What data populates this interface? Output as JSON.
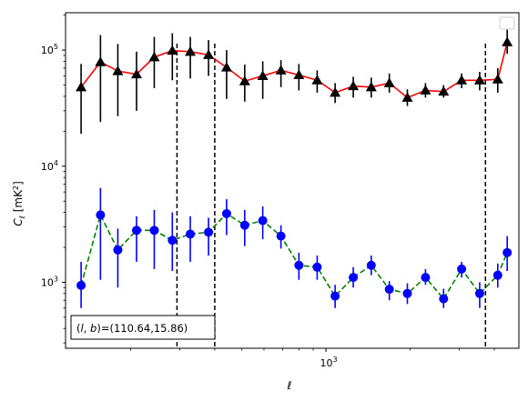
{
  "chart_data": {
    "type": "line",
    "xscale": "log",
    "yscale": "log",
    "xlabel": "ℓ",
    "ylabel": "C_ℓ [mK²]",
    "xlim": [
      117,
      4900
    ],
    "ylim": [
      270,
      210000
    ],
    "grid": false,
    "legend": "top-right",
    "x_ticks": [
      {
        "value": 1000,
        "base": "10",
        "exp": "3"
      }
    ],
    "y_ticks": [
      {
        "value": 1000,
        "base": "10",
        "exp": "3"
      },
      {
        "value": 10000,
        "base": "10",
        "exp": "4"
      },
      {
        "value": 100000,
        "base": "10",
        "exp": "5"
      }
    ],
    "vlines": [
      293,
      400,
      3720
    ],
    "annotation": "(l,b)=(110.64,15.86)",
    "annotation_parts": {
      "l": "l",
      "b": "b",
      "value": "=(110.64,15.86)"
    },
    "x": [
      133,
      156,
      180,
      210,
      243,
      282,
      327,
      380,
      441,
      512,
      594,
      690,
      800,
      930,
      1078,
      1252,
      1452,
      1685,
      1955,
      2270,
      2635,
      3057,
      3547,
      4117,
      4450
    ],
    "series": [
      {
        "line_color": "#ff0000",
        "marker_color": "#000000",
        "errorbar_color": "#000000",
        "line_style": "solid",
        "marker": "triangle",
        "values": [
          48000,
          79000,
          66000,
          62000,
          87000,
          99000,
          97000,
          91000,
          71000,
          54000,
          60000,
          67000,
          61000,
          55000,
          43000,
          49000,
          48000,
          52000,
          39000,
          45000,
          44000,
          55000,
          55000,
          56000,
          117000
        ],
        "err_low": [
          19000,
          24000,
          27000,
          30000,
          47000,
          55000,
          57000,
          60000,
          38000,
          36000,
          38000,
          48000,
          45000,
          43000,
          35000,
          39000,
          39000,
          43000,
          33000,
          39000,
          39000,
          47000,
          45000,
          43000,
          93000
        ],
        "err_high": [
          76000,
          135000,
          113000,
          97000,
          130000,
          140000,
          130000,
          122000,
          100000,
          75000,
          80000,
          82000,
          76000,
          67000,
          52000,
          59000,
          58000,
          63000,
          46000,
          52000,
          50000,
          63000,
          65000,
          70000,
          150000
        ]
      },
      {
        "line_color": "#008000",
        "marker_color": "#0000ff",
        "errorbar_color": "#0000ff",
        "line_style": "dashed",
        "marker": "circle",
        "values": [
          940,
          3800,
          1900,
          2800,
          2800,
          2300,
          2600,
          2700,
          3900,
          3100,
          3400,
          2500,
          1400,
          1350,
          760,
          1100,
          1400,
          870,
          800,
          1100,
          720,
          1300,
          800,
          1150,
          1800
        ],
        "err_low": [
          600,
          1050,
          900,
          1500,
          1300,
          1250,
          1500,
          1700,
          2550,
          2050,
          2350,
          1950,
          1050,
          1050,
          600,
          900,
          1150,
          700,
          650,
          950,
          600,
          1100,
          600,
          900,
          1250
        ],
        "err_high": [
          1500,
          6500,
          2900,
          3700,
          4200,
          4000,
          3700,
          3600,
          5200,
          4200,
          4500,
          3100,
          1800,
          1700,
          950,
          1350,
          1700,
          1020,
          980,
          1300,
          880,
          1500,
          1000,
          1450,
          2500
        ]
      }
    ]
  }
}
